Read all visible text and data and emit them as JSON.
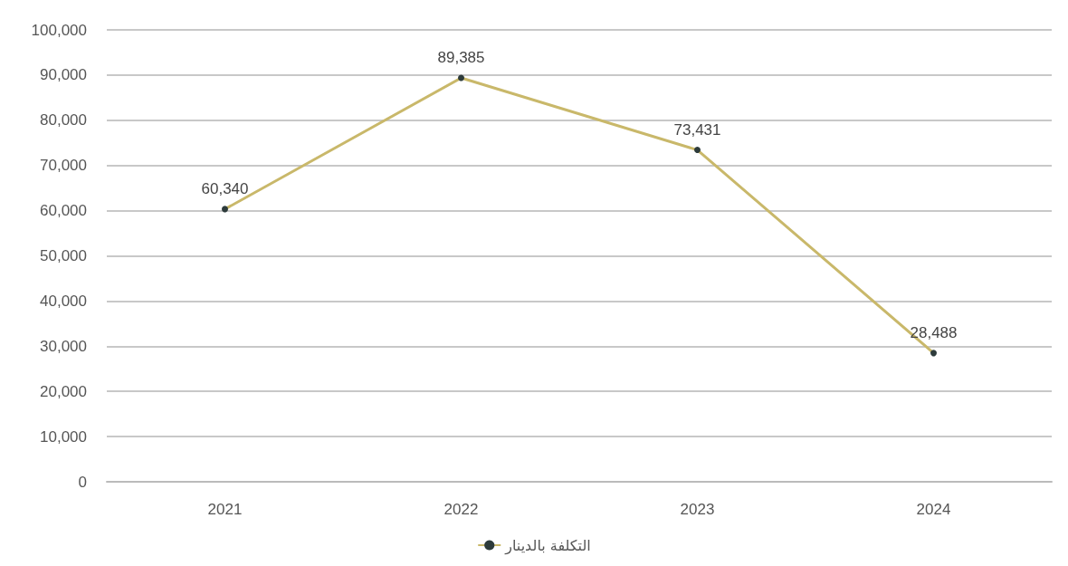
{
  "chart_data": {
    "type": "line",
    "categories": [
      "2021",
      "2022",
      "2023",
      "2024"
    ],
    "series": [
      {
        "name": "التكلفة بالدينار",
        "color": "#c9b86a",
        "values": [
          60340,
          89385,
          73431,
          28488
        ],
        "value_labels": [
          "60,340",
          "89,385",
          "73,431",
          "28,488"
        ]
      }
    ],
    "ylim": [
      0,
      100000
    ],
    "yticks": [
      0,
      {
        "value": 10000,
        "label": "10,000"
      },
      {
        "value": 20000,
        "label": "20,000"
      },
      {
        "value": 30000,
        "label": "30,000"
      },
      {
        "value": 40000,
        "label": "40,000"
      },
      {
        "value": 50000,
        "label": "50,000"
      },
      {
        "value": 60000,
        "label": "60,000"
      },
      {
        "value": 70000,
        "label": "70,000"
      },
      {
        "value": 80000,
        "label": "80,000"
      },
      {
        "value": 90000,
        "label": "90,000"
      },
      {
        "value": 100000,
        "label": "100,000"
      }
    ],
    "grid": "y",
    "legend": "bottom",
    "marker": "circle"
  }
}
